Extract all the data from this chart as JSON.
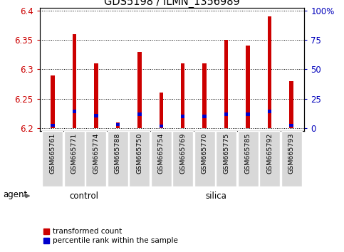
{
  "title": "GDS5198 / ILMN_1356989",
  "samples": [
    "GSM665761",
    "GSM665771",
    "GSM665774",
    "GSM665788",
    "GSM665750",
    "GSM665754",
    "GSM665769",
    "GSM665770",
    "GSM665775",
    "GSM665785",
    "GSM665792",
    "GSM665793"
  ],
  "groups": [
    "control",
    "control",
    "control",
    "control",
    "silica",
    "silica",
    "silica",
    "silica",
    "silica",
    "silica",
    "silica",
    "silica"
  ],
  "red_values": [
    6.29,
    6.36,
    6.31,
    6.21,
    6.33,
    6.26,
    6.31,
    6.31,
    6.35,
    6.34,
    6.39,
    6.28
  ],
  "blue_top": [
    6.207,
    6.231,
    6.224,
    6.209,
    6.226,
    6.206,
    6.223,
    6.223,
    6.226,
    6.226,
    6.231,
    6.207
  ],
  "blue_bot": [
    6.202,
    6.225,
    6.218,
    6.204,
    6.22,
    6.201,
    6.217,
    6.217,
    6.22,
    6.22,
    6.225,
    6.202
  ],
  "base_value": 6.2,
  "ylim_lo": 6.195,
  "ylim_hi": 6.405,
  "yticks": [
    6.2,
    6.25,
    6.3,
    6.35,
    6.4
  ],
  "pct_ticks": [
    0,
    25,
    50,
    75,
    100
  ],
  "pct_labels": [
    "0",
    "25",
    "50",
    "75",
    "100%"
  ],
  "bar_color_red": "#cc0000",
  "bar_color_blue": "#0000cc",
  "green_color": "#90ee90",
  "tick_label_color_left": "#cc0000",
  "tick_label_color_right": "#0000bb",
  "bg_gray": "#d8d8d8",
  "legend_red_label": "transformed count",
  "legend_blue_label": "percentile rank within the sample",
  "agent_label": "agent",
  "group_control_label": "control",
  "group_silica_label": "silica",
  "n_control": 4,
  "bar_width": 0.18
}
